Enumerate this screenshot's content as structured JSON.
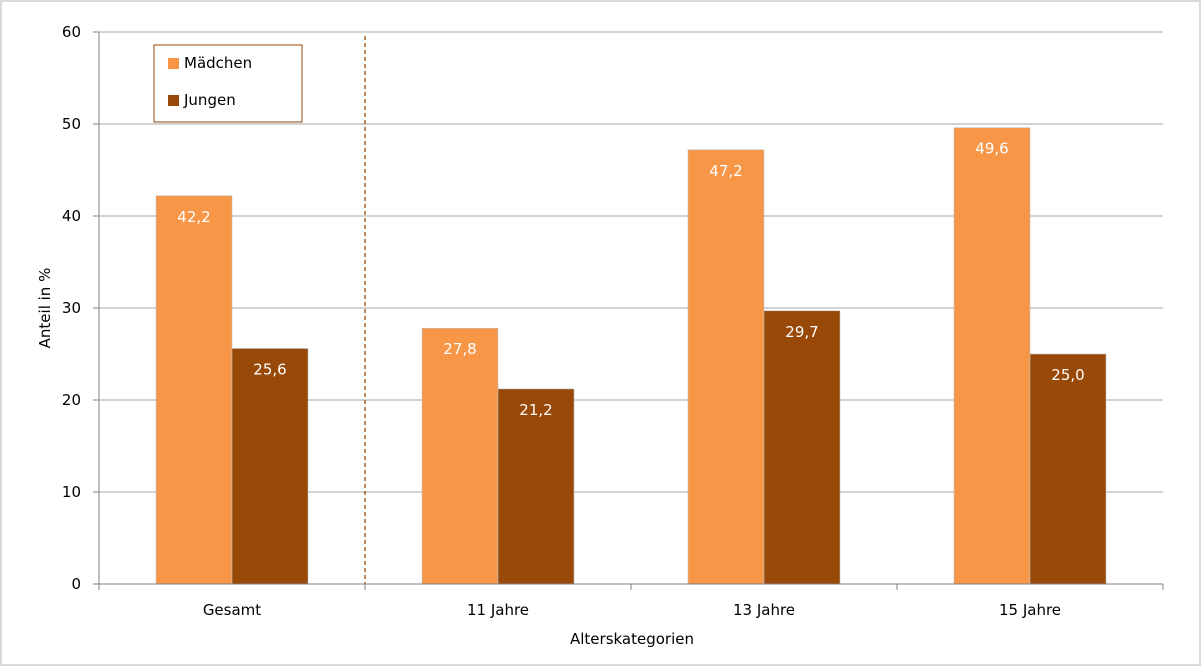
{
  "chart_data": {
    "type": "bar",
    "categories": [
      "Gesamt",
      "11 Jahre",
      "13 Jahre",
      "15 Jahre"
    ],
    "series": [
      {
        "name": "Mädchen",
        "values": [
          42.2,
          27.8,
          47.2,
          49.6
        ],
        "labels": [
          "42,2",
          "27,8",
          "47,2",
          "49,6"
        ],
        "color": "#f79646"
      },
      {
        "name": "Jungen",
        "values": [
          25.6,
          21.2,
          29.7,
          25.0
        ],
        "labels": [
          "25,6",
          "21,2",
          "29,7",
          "25,0"
        ],
        "color": "#984807"
      }
    ],
    "title": "",
    "xlabel": "Alterskategorien",
    "ylabel": "Anteil in %",
    "ylim": [
      0,
      60
    ],
    "yticks": [
      "0",
      "10",
      "20",
      "30",
      "40",
      "50",
      "60"
    ],
    "grid": true,
    "legend_position": "top-left",
    "separator_after_category": "Gesamt",
    "colors": {
      "gridline": "#a6a6a6",
      "axis": "#808080",
      "separator": "#984807",
      "bar_edge": "#c0c0c0"
    }
  }
}
